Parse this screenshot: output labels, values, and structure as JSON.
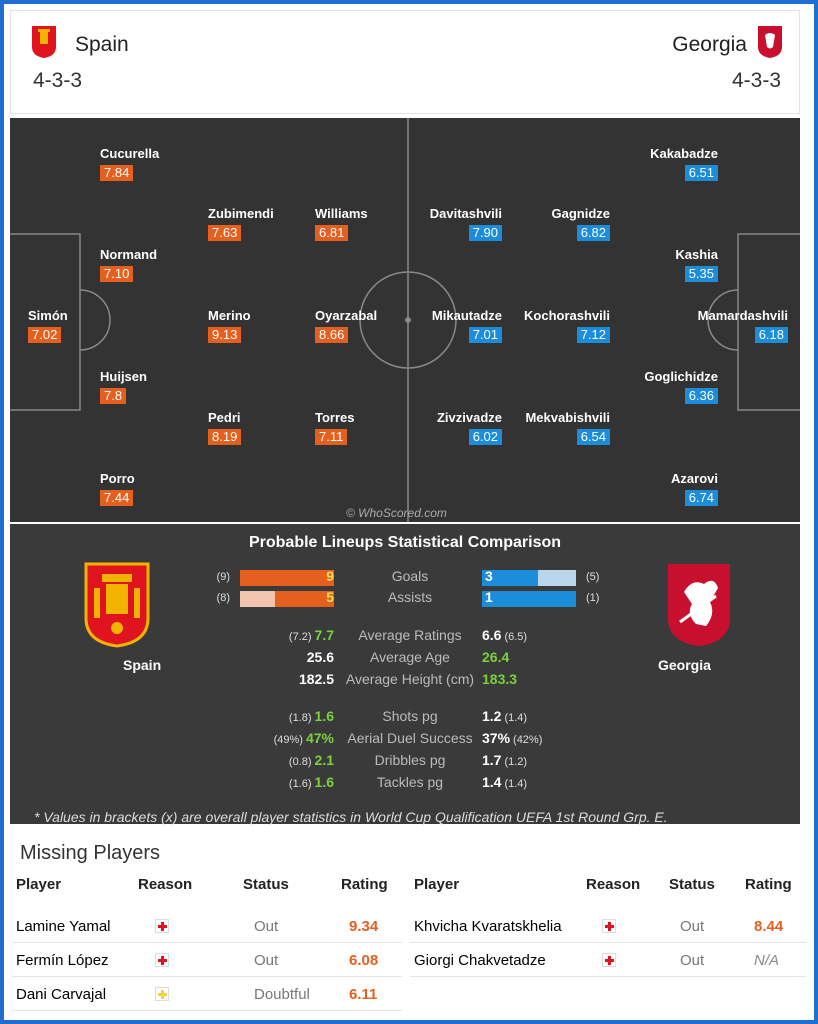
{
  "home": {
    "name": "Spain",
    "formation": "4-3-3",
    "color": "#e55f1e",
    "players": [
      {
        "name": "Cucurella",
        "rating": "7.84"
      },
      {
        "name": "Zubimendi",
        "rating": "7.63"
      },
      {
        "name": "Williams",
        "rating": "6.81"
      },
      {
        "name": "Normand",
        "rating": "7.10"
      },
      {
        "name": "Simón",
        "rating": "7.02"
      },
      {
        "name": "Merino",
        "rating": "9.13"
      },
      {
        "name": "Oyarzabal",
        "rating": "8.66"
      },
      {
        "name": "Huijsen",
        "rating": "7.8"
      },
      {
        "name": "Pedri",
        "rating": "8.19"
      },
      {
        "name": "Torres",
        "rating": "7.11"
      },
      {
        "name": "Porro",
        "rating": "7.44"
      }
    ]
  },
  "away": {
    "name": "Georgia",
    "formation": "4-3-3",
    "color": "#1c8ddb",
    "players": [
      {
        "name": "Kakabadze",
        "rating": "6.51"
      },
      {
        "name": "Davitashvili",
        "rating": "7.90"
      },
      {
        "name": "Gagnidze",
        "rating": "6.82"
      },
      {
        "name": "Kashia",
        "rating": "5.35"
      },
      {
        "name": "Mikautadze",
        "rating": "7.01"
      },
      {
        "name": "Kochorashvili",
        "rating": "7.12"
      },
      {
        "name": "Mamardashvili",
        "rating": "6.18"
      },
      {
        "name": "Goglichidze",
        "rating": "6.36"
      },
      {
        "name": "Zivzivadze",
        "rating": "6.02"
      },
      {
        "name": "Mekvabishvili",
        "rating": "6.54"
      },
      {
        "name": "Azarovi",
        "rating": "6.74"
      }
    ]
  },
  "watermark": "© WhoScored.com",
  "comparison": {
    "title": "Probable Lineups Statistical Comparison",
    "home_label": "Spain",
    "away_label": "Georgia",
    "bars": [
      {
        "label": "Goals",
        "home": "9",
        "home_bracket": "(9)",
        "home_fill": 1.0,
        "away": "3",
        "away_bracket": "(5)",
        "away_fill": 0.6
      },
      {
        "label": "Assists",
        "home": "5",
        "home_bracket": "(8)",
        "home_fill": 0.625,
        "away": "1",
        "away_bracket": "(1)",
        "away_fill": 1.0
      }
    ],
    "rows": [
      {
        "label": "Average Ratings",
        "home": "7.7",
        "home_bracket": "(7.2)",
        "away": "6.6",
        "away_bracket": "(6.5)",
        "better": "home"
      },
      {
        "label": "Average Age",
        "home": "25.6",
        "home_bracket": "",
        "away": "26.4",
        "away_bracket": "",
        "better": "away"
      },
      {
        "label": "Average Height (cm)",
        "home": "182.5",
        "home_bracket": "",
        "away": "183.3",
        "away_bracket": "",
        "better": "away"
      },
      {
        "label": "Shots pg",
        "home": "1.6",
        "home_bracket": "(1.8)",
        "away": "1.2",
        "away_bracket": "(1.4)",
        "better": "home"
      },
      {
        "label": "Aerial Duel Success",
        "home": "47%",
        "home_bracket": "(49%)",
        "away": "37%",
        "away_bracket": "(42%)",
        "better": "home"
      },
      {
        "label": "Dribbles pg",
        "home": "2.1",
        "home_bracket": "(0.8)",
        "away": "1.7",
        "away_bracket": "(1.2)",
        "better": "home"
      },
      {
        "label": "Tackles pg",
        "home": "1.6",
        "home_bracket": "(1.6)",
        "away": "1.4",
        "away_bracket": "(1.4)",
        "better": "home"
      }
    ],
    "footnote": "* Values in brackets (x) are overall player statistics in World Cup Qualification UEFA 1st Round Grp. E."
  },
  "missing": {
    "title": "Missing Players",
    "headers": {
      "player": "Player",
      "reason": "Reason",
      "status": "Status",
      "rating": "Rating"
    },
    "home": [
      {
        "name": "Lamine Yamal",
        "status": "Out",
        "rating": "9.34",
        "reason_color": "#e0141e"
      },
      {
        "name": "Fermín López",
        "status": "Out",
        "rating": "6.08",
        "reason_color": "#e0141e"
      },
      {
        "name": "Dani Carvajal",
        "status": "Doubtful",
        "rating": "6.11",
        "reason_color": "#f5d33c"
      }
    ],
    "away": [
      {
        "name": "Khvicha Kvaratskhelia",
        "status": "Out",
        "rating": "8.44",
        "reason_color": "#e0141e"
      },
      {
        "name": "Giorgi Chakvetadze",
        "status": "Out",
        "rating": "N/A",
        "reason_color": "#e0141e"
      }
    ]
  }
}
